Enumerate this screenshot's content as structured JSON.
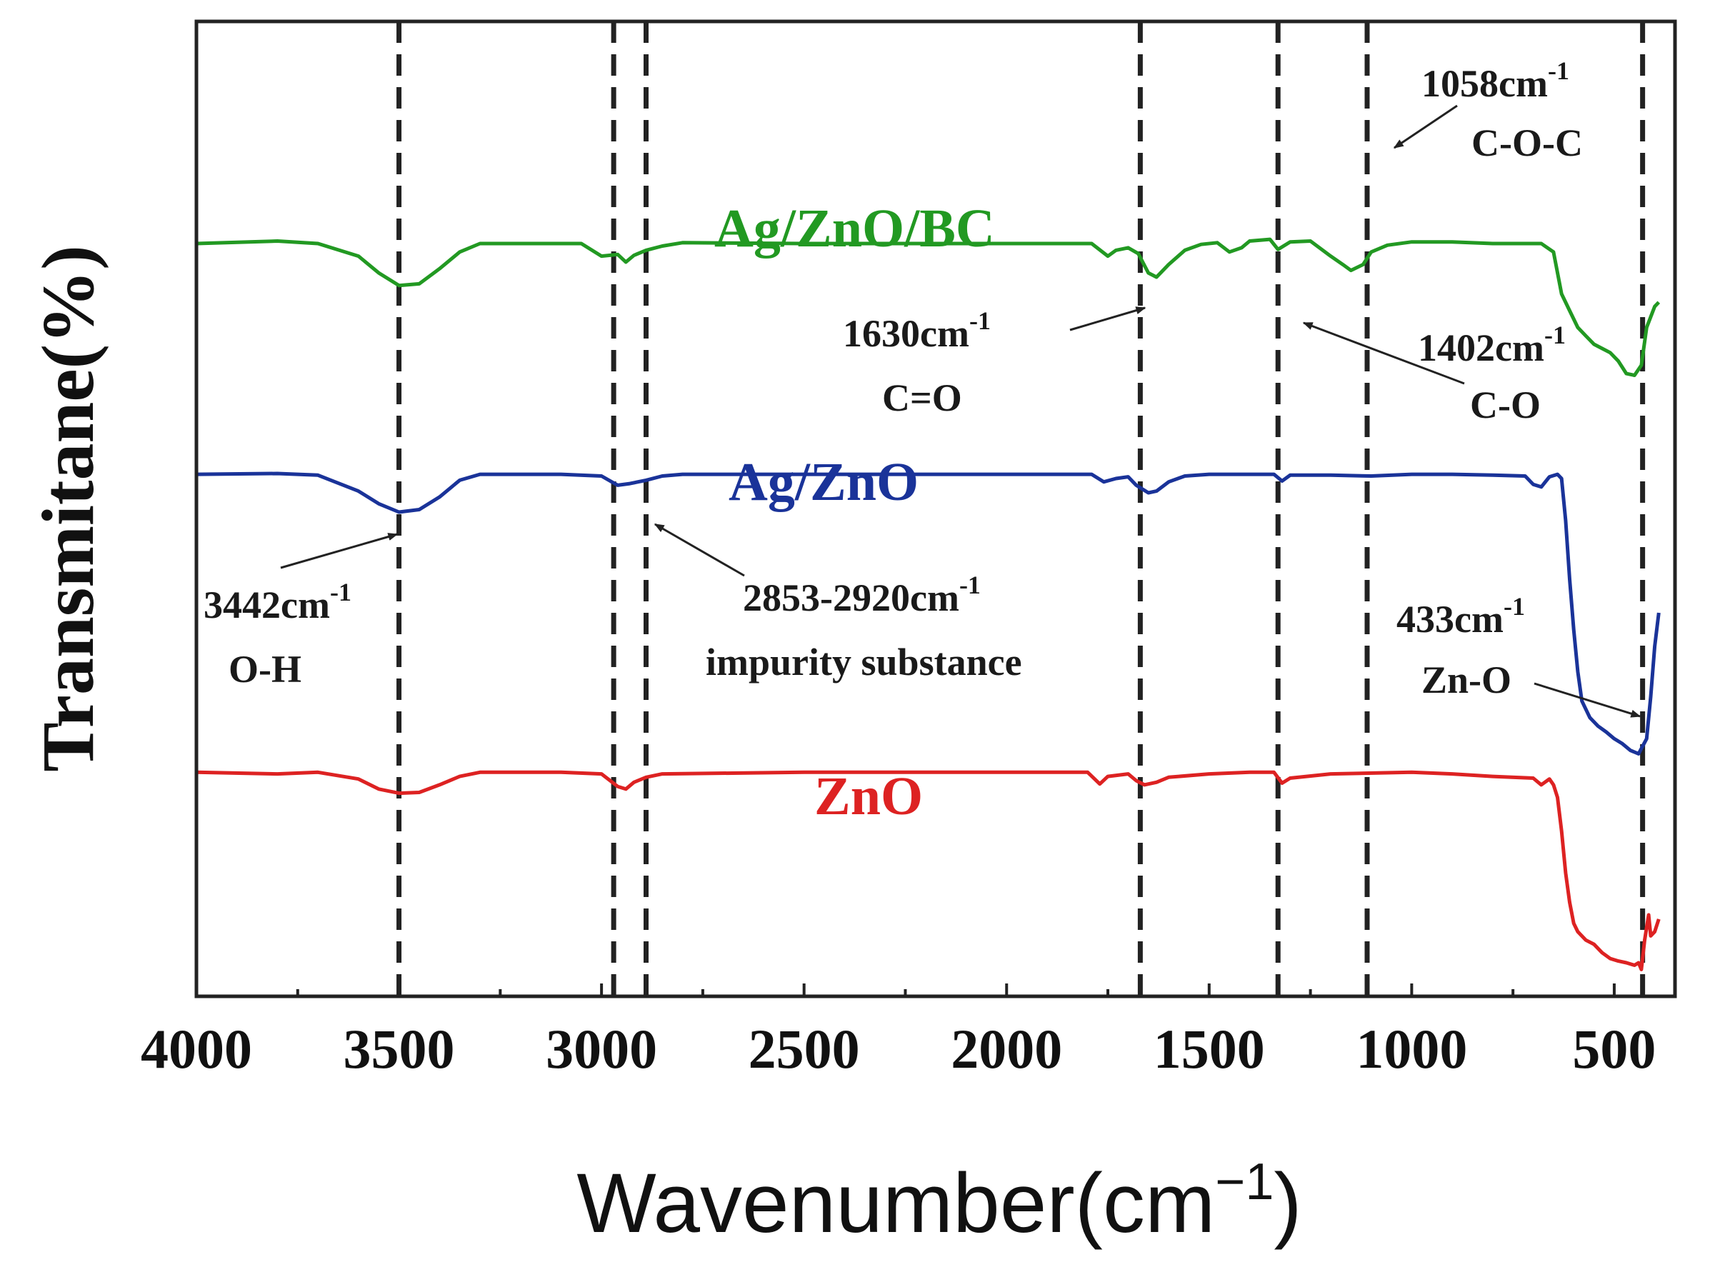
{
  "chart_data": {
    "type": "line",
    "title": "",
    "xlabel": "Wavenumber(cm",
    "xlabel_sup": "−1",
    "xlabel_close": ")",
    "ylabel": "Transmitane(%)",
    "xlim": [
      4000,
      350
    ],
    "ylim": [
      0,
      100
    ],
    "x_ticks": [
      4000,
      3500,
      3000,
      2500,
      2000,
      1500,
      1000,
      500
    ],
    "x_tick_labels": [
      "4000",
      "3500",
      "3000",
      "2500",
      "2000",
      "1500",
      "1000",
      "500"
    ],
    "grid": false,
    "reference_lines": [
      3500,
      2970,
      2890,
      1670,
      1330,
      1110,
      430
    ],
    "series": [
      {
        "name": "Ag/ZnO/BC",
        "color": "#229922",
        "points": [
          [
            4000,
            88.0
          ],
          [
            3800,
            88.3
          ],
          [
            3700,
            88.0
          ],
          [
            3600,
            86.5
          ],
          [
            3550,
            84.5
          ],
          [
            3500,
            83.0
          ],
          [
            3450,
            83.2
          ],
          [
            3400,
            85.0
          ],
          [
            3350,
            87.0
          ],
          [
            3300,
            88.0
          ],
          [
            3200,
            88.0
          ],
          [
            3100,
            88.0
          ],
          [
            3050,
            88.0
          ],
          [
            3000,
            86.5
          ],
          [
            2960,
            86.7
          ],
          [
            2940,
            85.8
          ],
          [
            2920,
            86.6
          ],
          [
            2890,
            87.2
          ],
          [
            2850,
            87.7
          ],
          [
            2800,
            88.1
          ],
          [
            2500,
            88.0
          ],
          [
            2200,
            88.0
          ],
          [
            1900,
            88.0
          ],
          [
            1790,
            88.0
          ],
          [
            1750,
            86.5
          ],
          [
            1730,
            87.2
          ],
          [
            1700,
            87.5
          ],
          [
            1675,
            86.8
          ],
          [
            1650,
            84.5
          ],
          [
            1630,
            84.0
          ],
          [
            1600,
            85.5
          ],
          [
            1560,
            87.2
          ],
          [
            1520,
            87.9
          ],
          [
            1480,
            88.1
          ],
          [
            1450,
            87.0
          ],
          [
            1420,
            87.5
          ],
          [
            1400,
            88.3
          ],
          [
            1350,
            88.5
          ],
          [
            1330,
            87.3
          ],
          [
            1300,
            88.2
          ],
          [
            1250,
            88.3
          ],
          [
            1200,
            86.5
          ],
          [
            1170,
            85.5
          ],
          [
            1150,
            84.8
          ],
          [
            1120,
            85.5
          ],
          [
            1100,
            87.0
          ],
          [
            1060,
            87.8
          ],
          [
            1000,
            88.2
          ],
          [
            900,
            88.2
          ],
          [
            800,
            88.0
          ],
          [
            680,
            88.0
          ],
          [
            650,
            87.0
          ],
          [
            630,
            82.0
          ],
          [
            610,
            80.0
          ],
          [
            590,
            78.0
          ],
          [
            570,
            77.0
          ],
          [
            550,
            76.0
          ],
          [
            530,
            75.5
          ],
          [
            510,
            75.0
          ],
          [
            490,
            74.0
          ],
          [
            470,
            72.5
          ],
          [
            450,
            72.3
          ],
          [
            433,
            73.5
          ],
          [
            420,
            78.0
          ],
          [
            400,
            80.5
          ],
          [
            390,
            81.0
          ]
        ]
      },
      {
        "name": "Ag/ZnO",
        "color": "#1a3399",
        "points": [
          [
            4000,
            60.5
          ],
          [
            3800,
            60.6
          ],
          [
            3700,
            60.4
          ],
          [
            3600,
            58.5
          ],
          [
            3550,
            57.0
          ],
          [
            3500,
            56.0
          ],
          [
            3450,
            56.3
          ],
          [
            3400,
            57.8
          ],
          [
            3350,
            59.8
          ],
          [
            3300,
            60.5
          ],
          [
            3100,
            60.5
          ],
          [
            3000,
            60.3
          ],
          [
            2960,
            59.2
          ],
          [
            2930,
            59.4
          ],
          [
            2890,
            59.8
          ],
          [
            2850,
            60.3
          ],
          [
            2800,
            60.5
          ],
          [
            2500,
            60.5
          ],
          [
            2200,
            60.5
          ],
          [
            1900,
            60.5
          ],
          [
            1790,
            60.5
          ],
          [
            1760,
            59.6
          ],
          [
            1730,
            60.0
          ],
          [
            1700,
            60.2
          ],
          [
            1680,
            59.2
          ],
          [
            1650,
            58.3
          ],
          [
            1630,
            58.5
          ],
          [
            1600,
            59.6
          ],
          [
            1560,
            60.3
          ],
          [
            1500,
            60.5
          ],
          [
            1400,
            60.5
          ],
          [
            1340,
            60.5
          ],
          [
            1320,
            59.7
          ],
          [
            1300,
            60.4
          ],
          [
            1200,
            60.4
          ],
          [
            1100,
            60.3
          ],
          [
            1000,
            60.5
          ],
          [
            900,
            60.5
          ],
          [
            800,
            60.4
          ],
          [
            720,
            60.3
          ],
          [
            700,
            59.3
          ],
          [
            680,
            59.0
          ],
          [
            660,
            60.2
          ],
          [
            640,
            60.5
          ],
          [
            630,
            60.0
          ],
          [
            620,
            55.0
          ],
          [
            610,
            48.0
          ],
          [
            600,
            42.0
          ],
          [
            590,
            37.0
          ],
          [
            580,
            33.5
          ],
          [
            560,
            31.5
          ],
          [
            540,
            30.5
          ],
          [
            520,
            29.8
          ],
          [
            500,
            29.0
          ],
          [
            480,
            28.4
          ],
          [
            460,
            27.6
          ],
          [
            440,
            27.2
          ],
          [
            420,
            29.0
          ],
          [
            410,
            34.0
          ],
          [
            400,
            40.0
          ],
          [
            390,
            44.0
          ]
        ]
      },
      {
        "name": "ZnO",
        "color": "#dd2222",
        "points": [
          [
            4000,
            25.0
          ],
          [
            3800,
            24.8
          ],
          [
            3700,
            25.0
          ],
          [
            3600,
            24.2
          ],
          [
            3550,
            23.0
          ],
          [
            3500,
            22.5
          ],
          [
            3450,
            22.6
          ],
          [
            3400,
            23.5
          ],
          [
            3350,
            24.5
          ],
          [
            3300,
            25.0
          ],
          [
            3100,
            25.0
          ],
          [
            3000,
            24.8
          ],
          [
            2960,
            23.3
          ],
          [
            2940,
            23.0
          ],
          [
            2920,
            23.8
          ],
          [
            2890,
            24.4
          ],
          [
            2850,
            24.8
          ],
          [
            2500,
            25.0
          ],
          [
            2000,
            25.0
          ],
          [
            1800,
            25.0
          ],
          [
            1770,
            23.6
          ],
          [
            1750,
            24.5
          ],
          [
            1700,
            24.8
          ],
          [
            1680,
            24.0
          ],
          [
            1660,
            23.5
          ],
          [
            1630,
            23.8
          ],
          [
            1600,
            24.4
          ],
          [
            1500,
            24.8
          ],
          [
            1400,
            25.0
          ],
          [
            1340,
            25.0
          ],
          [
            1320,
            23.7
          ],
          [
            1300,
            24.3
          ],
          [
            1200,
            24.8
          ],
          [
            1000,
            25.0
          ],
          [
            900,
            24.8
          ],
          [
            800,
            24.5
          ],
          [
            700,
            24.3
          ],
          [
            680,
            23.5
          ],
          [
            660,
            24.2
          ],
          [
            650,
            23.5
          ],
          [
            640,
            22.0
          ],
          [
            630,
            18.0
          ],
          [
            620,
            13.0
          ],
          [
            610,
            9.5
          ],
          [
            600,
            7.0
          ],
          [
            590,
            6.0
          ],
          [
            570,
            5.0
          ],
          [
            550,
            4.5
          ],
          [
            530,
            3.5
          ],
          [
            510,
            2.8
          ],
          [
            490,
            2.5
          ],
          [
            470,
            2.3
          ],
          [
            450,
            2.0
          ],
          [
            440,
            2.3
          ],
          [
            433,
            1.5
          ],
          [
            425,
            5.0
          ],
          [
            415,
            8.0
          ],
          [
            410,
            5.5
          ],
          [
            400,
            6.0
          ],
          [
            390,
            7.5
          ]
        ]
      }
    ],
    "series_labels": [
      "Ag/ZnO/BC",
      "Ag/ZnO",
      "ZnO"
    ],
    "annotations": [
      {
        "id": "a1058",
        "value": "1058cm",
        "sup": "-1",
        "group": "C-O-C"
      },
      {
        "id": "a1630",
        "value": "1630cm",
        "sup": "-1",
        "group": "C=O"
      },
      {
        "id": "a1402",
        "value": "1402cm",
        "sup": "-1",
        "group": "C-O"
      },
      {
        "id": "a3442",
        "value": "3442cm",
        "sup": "-1",
        "group": "O-H"
      },
      {
        "id": "a2853",
        "value": "2853-2920cm",
        "sup": "-1",
        "group": "impurity substance"
      },
      {
        "id": "a433",
        "value": "433cm",
        "sup": "-1",
        "group": "Zn-O"
      }
    ]
  }
}
